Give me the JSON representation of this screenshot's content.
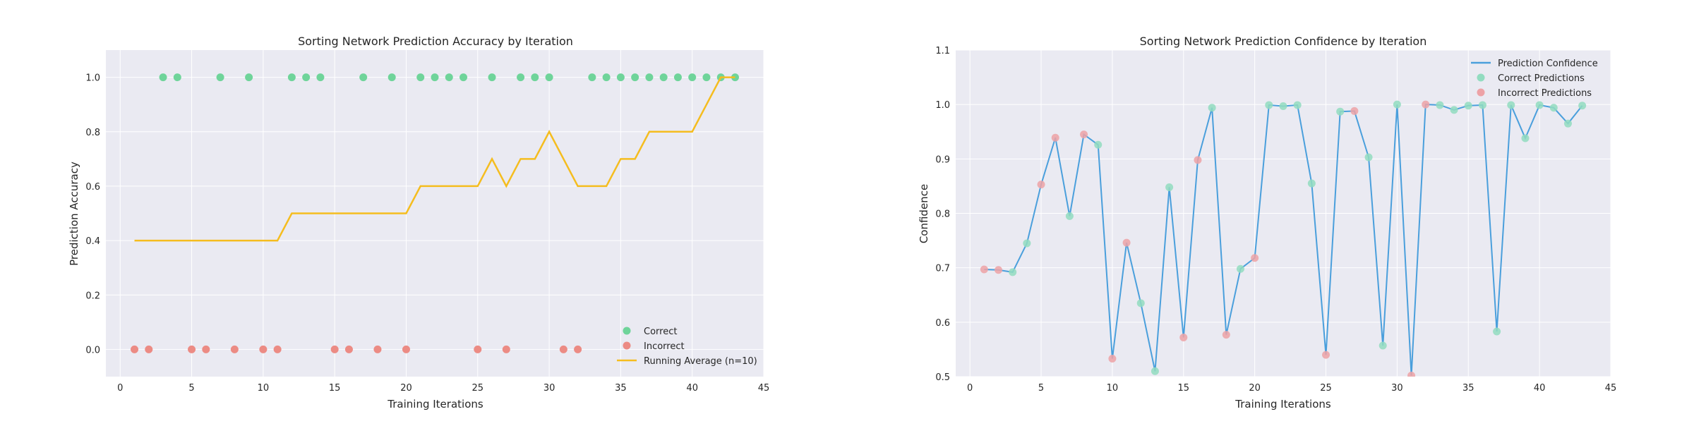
{
  "chart_data": [
    {
      "type": "scatter",
      "title": "Sorting Network Prediction Accuracy by Iteration",
      "xlabel": "Training Iterations",
      "ylabel": "Prediction Accuracy",
      "xlim": [
        -1,
        45
      ],
      "ylim": [
        -0.1,
        1.1
      ],
      "xticks": [
        0,
        5,
        10,
        15,
        20,
        25,
        30,
        35,
        40,
        45
      ],
      "yticks": [
        0.0,
        0.2,
        0.4,
        0.6,
        0.8,
        1.0
      ],
      "xtick_labels": [
        "0",
        "5",
        "10",
        "15",
        "20",
        "25",
        "30",
        "35",
        "40",
        "45"
      ],
      "ytick_labels": [
        "0.0",
        "0.2",
        "0.4",
        "0.6",
        "0.8",
        "1.0"
      ],
      "grid": true,
      "legend_position": "bottom-right",
      "colors": {
        "correct": "#6fd49a",
        "incorrect": "#ec8b84",
        "running": "#f5bd1f"
      },
      "series": [
        {
          "name": "Correct",
          "kind": "scatter",
          "x": [
            3,
            4,
            7,
            9,
            12,
            13,
            14,
            17,
            19,
            21,
            22,
            23,
            24,
            26,
            28,
            29,
            30,
            33,
            34,
            35,
            36,
            37,
            38,
            39,
            40,
            41,
            42,
            43
          ],
          "y": [
            1,
            1,
            1,
            1,
            1,
            1,
            1,
            1,
            1,
            1,
            1,
            1,
            1,
            1,
            1,
            1,
            1,
            1,
            1,
            1,
            1,
            1,
            1,
            1,
            1,
            1,
            1,
            1
          ]
        },
        {
          "name": "Incorrect",
          "kind": "scatter",
          "x": [
            1,
            2,
            5,
            6,
            8,
            10,
            11,
            15,
            16,
            18,
            20,
            25,
            27,
            31,
            32
          ],
          "y": [
            0,
            0,
            0,
            0,
            0,
            0,
            0,
            0,
            0,
            0,
            0,
            0,
            0,
            0,
            0
          ]
        },
        {
          "name": "Running Average (n=10)",
          "kind": "line",
          "x": [
            1,
            2,
            3,
            4,
            5,
            6,
            7,
            8,
            9,
            10,
            11,
            12,
            13,
            14,
            15,
            16,
            17,
            18,
            19,
            20,
            21,
            22,
            23,
            24,
            25,
            26,
            27,
            28,
            29,
            30,
            31,
            32,
            33,
            34,
            35,
            36,
            37,
            38,
            39,
            40,
            41,
            42,
            43
          ],
          "y": [
            0.4,
            0.4,
            0.4,
            0.4,
            0.4,
            0.4,
            0.4,
            0.4,
            0.4,
            0.4,
            0.4,
            0.5,
            0.5,
            0.5,
            0.5,
            0.5,
            0.5,
            0.5,
            0.5,
            0.5,
            0.6,
            0.6,
            0.6,
            0.6,
            0.6,
            0.7,
            0.6,
            0.7,
            0.7,
            0.8,
            0.7,
            0.6,
            0.6,
            0.6,
            0.7,
            0.7,
            0.8,
            0.8,
            0.8,
            0.8,
            0.9,
            1.0,
            1.0
          ]
        }
      ]
    },
    {
      "type": "line",
      "title": "Sorting Network Prediction Confidence by Iteration",
      "xlabel": "Training Iterations",
      "ylabel": "Confidence",
      "xlim": [
        -1,
        45
      ],
      "ylim": [
        0.5,
        1.1
      ],
      "xticks": [
        0,
        5,
        10,
        15,
        20,
        25,
        30,
        35,
        40,
        45
      ],
      "yticks": [
        0.5,
        0.6,
        0.7,
        0.8,
        0.9,
        1.0,
        1.1
      ],
      "xtick_labels": [
        "0",
        "5",
        "10",
        "15",
        "20",
        "25",
        "30",
        "35",
        "40",
        "45"
      ],
      "ytick_labels": [
        "0.5",
        "0.6",
        "0.7",
        "0.8",
        "0.9",
        "1.0",
        "1.1"
      ],
      "grid": true,
      "legend_position": "top-right",
      "colors": {
        "line": "#4a9fdc",
        "correct": "#92dcc0",
        "incorrect": "#eda2a6"
      },
      "series": [
        {
          "name": "Prediction Confidence",
          "kind": "line",
          "x": [
            1,
            2,
            3,
            4,
            5,
            6,
            7,
            8,
            9,
            10,
            11,
            12,
            13,
            14,
            15,
            16,
            17,
            18,
            19,
            20,
            21,
            22,
            23,
            24,
            25,
            26,
            27,
            28,
            29,
            30,
            31,
            32,
            33,
            34,
            35,
            36,
            37,
            38,
            39,
            40,
            41,
            42,
            43
          ],
          "y": [
            0.697,
            0.696,
            0.692,
            0.745,
            0.853,
            0.939,
            0.795,
            0.945,
            0.926,
            0.533,
            0.746,
            0.635,
            0.51,
            0.848,
            0.572,
            0.898,
            0.994,
            0.577,
            0.698,
            0.718,
            0.999,
            0.997,
            0.999,
            0.855,
            0.54,
            0.987,
            0.988,
            0.903,
            0.557,
            1.0,
            0.502,
            1.0,
            0.999,
            0.99,
            0.998,
            0.999,
            0.583,
            0.999,
            0.938,
            0.999,
            0.994,
            0.965,
            0.998
          ]
        },
        {
          "name": "Correct Predictions",
          "kind": "scatter",
          "x": [
            3,
            4,
            7,
            9,
            12,
            13,
            14,
            17,
            19,
            21,
            22,
            23,
            24,
            26,
            28,
            29,
            30,
            33,
            34,
            35,
            36,
            37,
            38,
            39,
            40,
            41,
            42,
            43
          ],
          "y": [
            0.692,
            0.745,
            0.795,
            0.926,
            0.635,
            0.51,
            0.848,
            0.994,
            0.698,
            0.999,
            0.997,
            0.999,
            0.855,
            0.987,
            0.903,
            0.557,
            1.0,
            0.999,
            0.99,
            0.998,
            0.999,
            0.583,
            0.999,
            0.938,
            0.999,
            0.994,
            0.965,
            0.998
          ]
        },
        {
          "name": "Incorrect Predictions",
          "kind": "scatter",
          "x": [
            1,
            2,
            5,
            6,
            8,
            10,
            11,
            15,
            16,
            18,
            20,
            25,
            27,
            31,
            32
          ],
          "y": [
            0.697,
            0.696,
            0.853,
            0.939,
            0.945,
            0.533,
            0.746,
            0.572,
            0.898,
            0.577,
            0.718,
            0.54,
            0.988,
            0.502,
            1.0
          ]
        }
      ]
    }
  ]
}
